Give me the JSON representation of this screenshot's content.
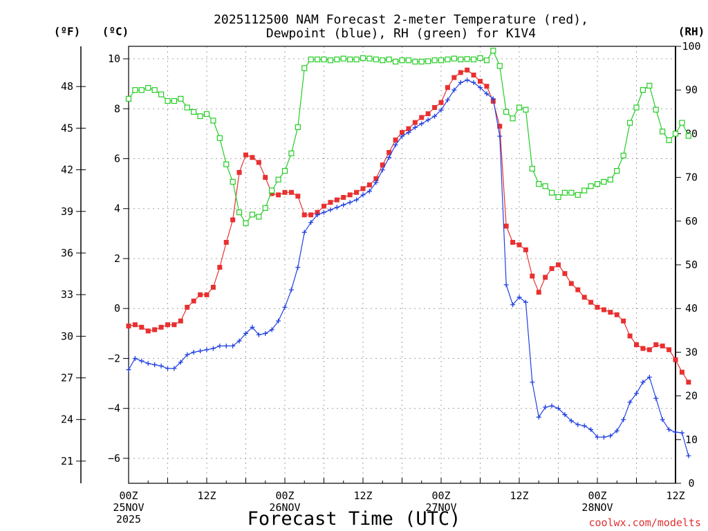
{
  "header": {
    "title_line1": "2025112500 NAM Forecast 2-meter Temperature (red),",
    "title_line2": "Dewpoint (blue), RH (green) for K1V4"
  },
  "axes": {
    "unit_f": "(ºF)",
    "unit_c": "(ºC)",
    "unit_rh": "(RH)",
    "xlabel": "Forecast Time (UTC)",
    "credit": "coolwx.com/modelts"
  },
  "colors": {
    "temp": "#e83030",
    "dewpoint": "#2040e0",
    "rh": "#22cc22",
    "grid": "#a0a0a0"
  },
  "chart_data": {
    "type": "line",
    "title": "2025112500 NAM Forecast 2-meter Temperature (red), Dewpoint (blue), RH (green) for K1V4",
    "xlabel": "Forecast Time (UTC)",
    "x_unit": "forecast hours from 2025-11-25 00Z",
    "xlim": [
      0,
      84
    ],
    "x_ticks": [
      {
        "x": 0,
        "lines": [
          "00Z",
          "25NOV",
          "2025"
        ]
      },
      {
        "x": 12,
        "lines": [
          "12Z"
        ]
      },
      {
        "x": 24,
        "lines": [
          "00Z",
          "26NOV"
        ]
      },
      {
        "x": 36,
        "lines": [
          "12Z"
        ]
      },
      {
        "x": 48,
        "lines": [
          "00Z",
          "27NOV"
        ]
      },
      {
        "x": 60,
        "lines": [
          "12Z"
        ]
      },
      {
        "x": 72,
        "lines": [
          "00Z",
          "28NOV"
        ]
      },
      {
        "x": 84,
        "lines": [
          "12Z"
        ]
      }
    ],
    "left_axis_c": {
      "label": "(ºC)",
      "lim": [
        -7.0,
        10.5
      ],
      "ticks": [
        10,
        8,
        6,
        4,
        2,
        0,
        -2,
        -4,
        -6
      ]
    },
    "left_axis_f": {
      "label": "(ºF)",
      "ticks": [
        48,
        45,
        42,
        39,
        36,
        33,
        30,
        27,
        24,
        21
      ]
    },
    "right_axis_rh": {
      "label": "(RH)",
      "lim": [
        0,
        100
      ],
      "ticks": [
        100,
        90,
        80,
        70,
        60,
        50,
        40,
        30,
        20,
        10,
        0
      ]
    },
    "series": [
      {
        "name": "2-meter Temperature",
        "unit": "C",
        "color": "red",
        "values": [
          -0.7,
          -0.65,
          -0.75,
          -0.9,
          -0.85,
          -0.75,
          -0.65,
          -0.65,
          -0.5,
          0.05,
          0.3,
          0.55,
          0.55,
          0.85,
          1.65,
          2.65,
          3.55,
          5.45,
          6.15,
          6.05,
          5.85,
          5.25,
          4.6,
          4.55,
          4.65,
          4.65,
          4.5,
          3.75,
          3.75,
          3.85,
          4.1,
          4.25,
          4.35,
          4.45,
          4.55,
          4.65,
          4.8,
          4.95,
          5.2,
          5.75,
          6.25,
          6.75,
          7.05,
          7.2,
          7.45,
          7.65,
          7.8,
          8.05,
          8.25,
          8.85,
          9.25,
          9.45,
          9.55,
          9.35,
          9.1,
          8.9,
          8.3,
          7.3,
          3.3,
          2.65,
          2.55,
          2.35,
          1.3,
          0.65,
          1.25,
          1.6,
          1.75,
          1.4,
          1.0,
          0.75,
          0.45,
          0.25,
          0.05,
          -0.05,
          -0.15,
          -0.25,
          -0.5,
          -1.1,
          -1.45,
          -1.6,
          -1.65,
          -1.45,
          -1.5,
          -1.65,
          -2.05,
          -2.55,
          -2.95
        ]
      },
      {
        "name": "Dewpoint",
        "unit": "C",
        "color": "blue",
        "values": [
          -2.45,
          -2.0,
          -2.1,
          -2.2,
          -2.25,
          -2.3,
          -2.4,
          -2.4,
          -2.15,
          -1.85,
          -1.75,
          -1.7,
          -1.65,
          -1.6,
          -1.5,
          -1.5,
          -1.5,
          -1.3,
          -1.0,
          -0.75,
          -1.05,
          -1.0,
          -0.85,
          -0.5,
          0.05,
          0.75,
          1.65,
          3.05,
          3.45,
          3.75,
          3.85,
          3.95,
          4.05,
          4.15,
          4.25,
          4.35,
          4.55,
          4.7,
          5.05,
          5.55,
          6.05,
          6.55,
          6.9,
          7.05,
          7.25,
          7.4,
          7.55,
          7.7,
          7.95,
          8.35,
          8.75,
          9.05,
          9.15,
          9.05,
          8.85,
          8.6,
          8.4,
          6.9,
          0.95,
          0.15,
          0.45,
          0.25,
          -2.95,
          -4.35,
          -3.95,
          -3.9,
          -4.0,
          -4.25,
          -4.5,
          -4.65,
          -4.7,
          -4.85,
          -5.15,
          -5.15,
          -5.1,
          -4.9,
          -4.45,
          -3.75,
          -3.4,
          -2.95,
          -2.75,
          -3.6,
          -4.45,
          -4.85,
          -4.95,
          -4.98,
          -5.9
        ]
      },
      {
        "name": "Relative Humidity",
        "unit": "%",
        "color": "green",
        "values": [
          88,
          90,
          90,
          90.5,
          90,
          89,
          87.5,
          87.5,
          88,
          86,
          85,
          84,
          84.5,
          83,
          79,
          73,
          69,
          62,
          59.5,
          61.5,
          61,
          63,
          67,
          69.5,
          71.5,
          75.5,
          81.5,
          95,
          97,
          97,
          97,
          96.8,
          97,
          97.2,
          97,
          97,
          97.3,
          97.2,
          97,
          96.8,
          97,
          96.5,
          96.8,
          96.8,
          96.5,
          96.5,
          96.6,
          96.8,
          96.8,
          97,
          97.2,
          97,
          97.1,
          97,
          97.3,
          96.8,
          99,
          95.5,
          85,
          83.5,
          86,
          85.5,
          72,
          68.5,
          68,
          66.5,
          65.5,
          66.5,
          66.5,
          66,
          67,
          68,
          68.5,
          69,
          69.5,
          71.5,
          75,
          82.5,
          86,
          90,
          91,
          85.5,
          80.5,
          78.5,
          80,
          82.5,
          79.5
        ]
      }
    ]
  }
}
